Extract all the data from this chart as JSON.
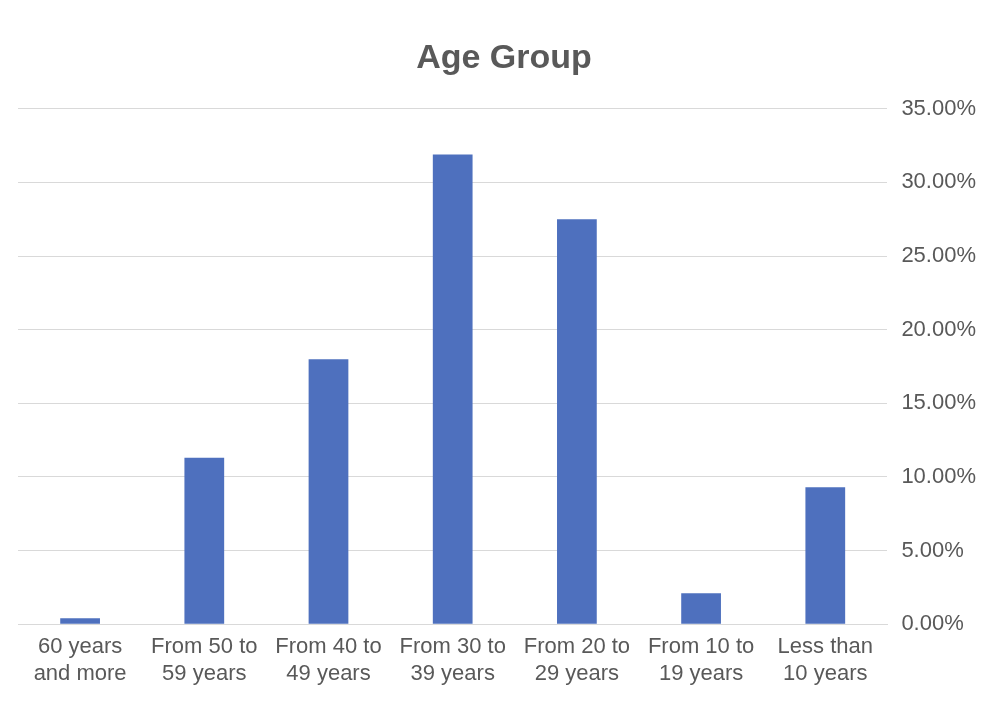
{
  "chart_data": {
    "type": "bar",
    "title": "Age Group",
    "categories": [
      "60 years and more",
      "From 50 to 59 years",
      "From 40 to 49 years",
      "From 30 to 39 years",
      "From 20 to 29 years",
      "From 10 to 19 years",
      "Less than 10 years"
    ],
    "values": [
      0.4,
      11.3,
      18.0,
      31.9,
      27.5,
      2.1,
      9.3
    ],
    "color": "#4e70be",
    "ylim": [
      0,
      35
    ],
    "yticks": [
      {
        "value": 0,
        "label": "0.00%"
      },
      {
        "value": 5,
        "label": "5.00%"
      },
      {
        "value": 10,
        "label": "10.00%"
      },
      {
        "value": 15,
        "label": "15.00%"
      },
      {
        "value": 20,
        "label": "20.00%"
      },
      {
        "value": 25,
        "label": "25.00%"
      },
      {
        "value": 30,
        "label": "30.00%"
      },
      {
        "value": 35,
        "label": "35.00%"
      }
    ],
    "grid": "y",
    "legend": false
  }
}
